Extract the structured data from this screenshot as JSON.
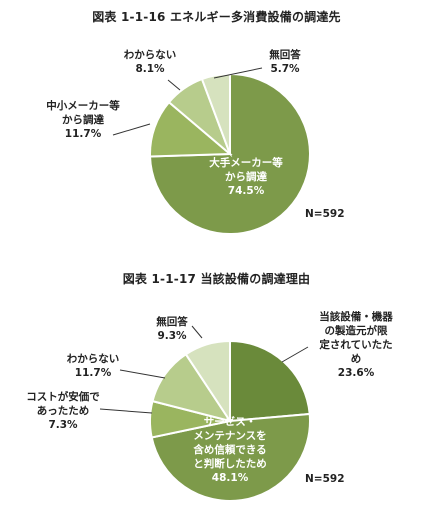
{
  "chart_data": [
    {
      "type": "pie",
      "title": "図表 1-1-16 エネルギー多消費設備の調達先",
      "note": "N=592",
      "slices": [
        {
          "label": [
            "大手メーカー等",
            "から調達"
          ],
          "value_text": "74.5%",
          "value": 74.5,
          "color": "#7d9a4a"
        },
        {
          "label": [
            "中小メーカー等",
            "から調達"
          ],
          "value_text": "11.7%",
          "value": 11.7,
          "color": "#9ab55f"
        },
        {
          "label": [
            "わからない"
          ],
          "value_text": "8.1%",
          "value": 8.1,
          "color": "#b7cc8c"
        },
        {
          "label": [
            "無回答"
          ],
          "value_text": "5.7%",
          "value": 5.7,
          "color": "#d6e2be"
        }
      ]
    },
    {
      "type": "pie",
      "title": "図表 1-1-17 当該設備の調達理由",
      "note": "N=592",
      "slices": [
        {
          "label": [
            "当該設備・機器",
            "の製造元が限",
            "定されていたた",
            "め"
          ],
          "value_text": "23.6%",
          "value": 23.6,
          "color": "#6a8a3a"
        },
        {
          "label": [
            "サービス・",
            "メンテナンスを",
            "含め信頼できる",
            "と判断したため"
          ],
          "value_text": "48.1%",
          "value": 48.1,
          "color": "#7d9a4a"
        },
        {
          "label": [
            "コストが安価で",
            "あったため"
          ],
          "value_text": "7.3%",
          "value": 7.3,
          "color": "#9ab55f"
        },
        {
          "label": [
            "わからない"
          ],
          "value_text": "11.7%",
          "value": 11.7,
          "color": "#b7cc8c"
        },
        {
          "label": [
            "無回答"
          ],
          "value_text": "9.3%",
          "value": 9.3,
          "color": "#d6e2be"
        }
      ]
    }
  ]
}
